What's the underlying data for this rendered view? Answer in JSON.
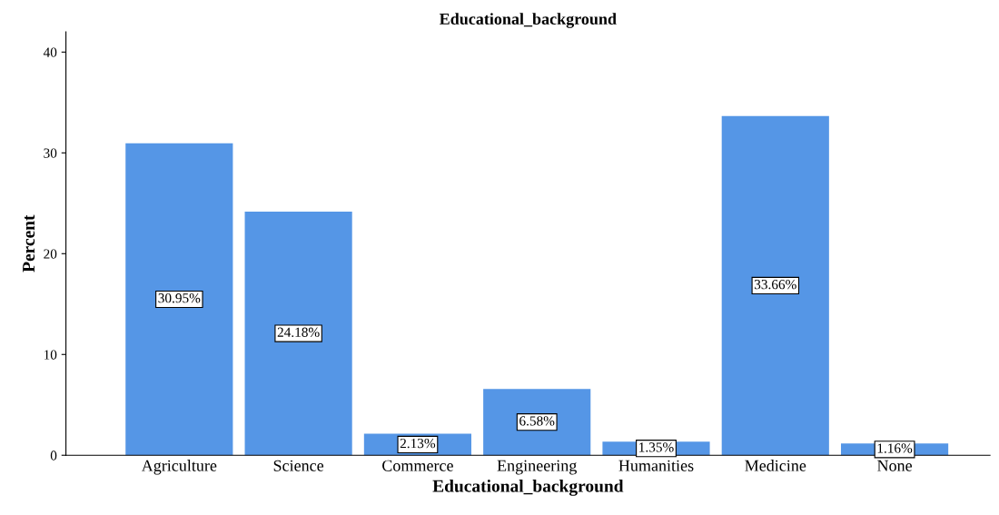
{
  "chart_data": {
    "type": "bar",
    "title": "Educational_background",
    "xlabel": "Educational_background",
    "ylabel": "Percent",
    "categories": [
      "Agriculture",
      "Science",
      "Commerce",
      "Engineering",
      "Humanities",
      "Medicine",
      "None"
    ],
    "values": [
      30.95,
      24.18,
      2.13,
      6.58,
      1.35,
      33.66,
      1.16
    ],
    "value_labels": [
      "30.95%",
      "24.18%",
      "2.13%",
      "6.58%",
      "1.35%",
      "33.66%",
      "1.16%"
    ],
    "color": "#5596e6",
    "ylim": [
      0,
      42
    ],
    "yticks": [
      0,
      10,
      20,
      30,
      40
    ],
    "grid": false
  }
}
